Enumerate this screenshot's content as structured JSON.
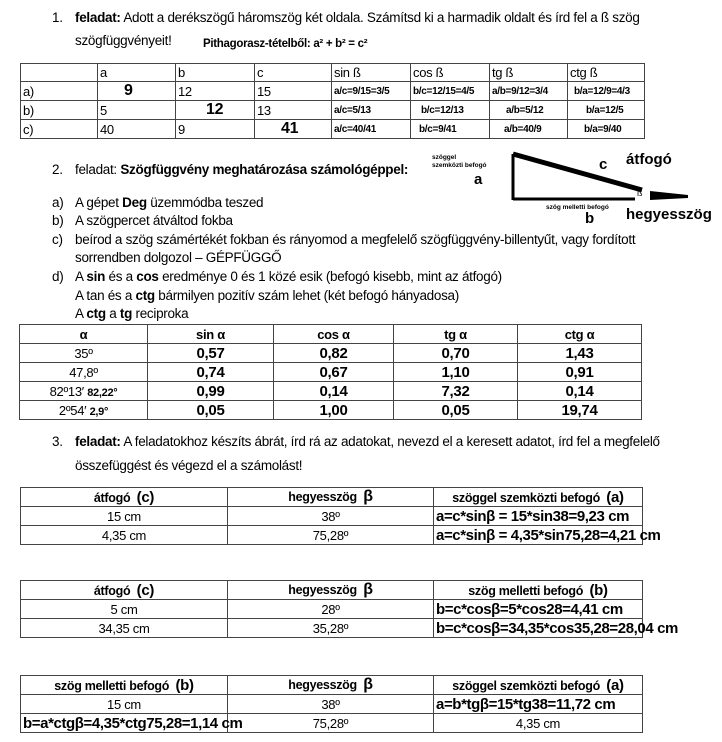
{
  "task1": {
    "number": "1.",
    "label": "feladat:",
    "text": "Adott a derékszögű háromszög két oldala. Számítsd ki a harmadik oldalt és írd fel a ß szög",
    "text2": "szögfüggvényeit!",
    "pythagoras": "Pithagorasz-tételből: a² + b²  = c²",
    "table": {
      "headers": [
        "",
        "a",
        "b",
        "c",
        "sin ß",
        "cos ß",
        "tg ß",
        "ctg ß"
      ],
      "rows": [
        [
          "a)",
          "9",
          "12",
          "15",
          "a/c=9/15=3/5",
          "b/c=12/15=4/5",
          "a/b=9/12=3/4",
          "b/a=12/9=4/3"
        ],
        [
          "b)",
          "5",
          "12",
          "13",
          "a/c=5/13",
          "b/c=12/13",
          "a/b=5/12",
          "b/a=12/5"
        ],
        [
          "c)",
          "40",
          "9",
          "41",
          "a/c=40/41",
          "b/c=9/41",
          "a/b=40/9",
          "b/a=9/40"
        ]
      ]
    }
  },
  "task2": {
    "number": "2.",
    "label": "feladat:",
    "title": "Szögfüggvény meghatározása számológéppel:",
    "items": [
      {
        "marker": "a)",
        "pre": "A gépet ",
        "bold": "Deg",
        "post": " üzemmódba teszed"
      },
      {
        "marker": "b)",
        "text": "A szögpercet átváltod fokba"
      },
      {
        "marker": "c)",
        "text": "beírod a szög számértékét fokban és rányomod a megfelelő szögfüggvény-billentyűt, vagy fordított",
        "text2": "sorrendben dolgozol – GÉPFÜGGŐ"
      },
      {
        "marker": "d)",
        "line1": [
          "A ",
          "sin",
          " és a ",
          "cos",
          " eredménye 0 és 1 közé esik (befogó kisebb, mint az átfogó)"
        ],
        "line2": [
          "A tan és a ",
          "ctg",
          " bármilyen pozitív szám lehet (két befogó hányadosa)"
        ],
        "line3": [
          "A ",
          "ctg",
          " a ",
          "tg",
          " reciproka"
        ]
      }
    ],
    "diagram": {
      "opposite_leg": "szöggel szemközti befogó",
      "a": "a",
      "c": "c",
      "hypotenuse": "átfogó",
      "beta": "ß",
      "adjacent_leg": "szög melletti befogó",
      "b": "b",
      "acute_angle": "hegyesszög"
    },
    "table": {
      "headers": [
        "α",
        "sin α",
        "cos α",
        "tg α",
        "ctg α"
      ],
      "rows": [
        {
          "angle": "35º",
          "extra": "",
          "values": [
            "0,57",
            "0,82",
            "0,70",
            "1,43"
          ]
        },
        {
          "angle": "47,8º",
          "extra": "",
          "values": [
            "0,74",
            "0,67",
            "1,10",
            "0,91"
          ]
        },
        {
          "angle": "82º13′",
          "extra": "82,22°",
          "values": [
            "0,99",
            "0,14",
            "7,32",
            "0,14"
          ]
        },
        {
          "angle": "2º54′",
          "extra": "2,9°",
          "values": [
            "0,05",
            "1,00",
            "0,05",
            "19,74"
          ]
        }
      ]
    }
  },
  "task3": {
    "number": "3.",
    "label": "feladat:",
    "text": "A feladatokhoz készíts ábrát, írd rá az adatokat, nevezd el a keresett adatot, írd fel a megfelelő",
    "text2": "összefüggést és végezd el a számolást!",
    "tables": [
      {
        "headers": [
          {
            "t": "átfogó",
            "s": "(c)"
          },
          {
            "t": "hegyesszög",
            "s": "β"
          },
          {
            "t": "szöggel szemközti befogó",
            "s": "(a)"
          }
        ],
        "rows": [
          [
            "15 cm",
            "38º",
            "a=c*sinβ = 15*sin38=9,23 cm"
          ],
          [
            "4,35 cm",
            "75,28º",
            "a=c*sinβ = 4,35*sin75,28=4,21 cm"
          ]
        ]
      },
      {
        "headers": [
          {
            "t": "átfogó",
            "s": "(c)"
          },
          {
            "t": "hegyesszög",
            "s": "β"
          },
          {
            "t": "szög melletti befogó",
            "s": "(b)"
          }
        ],
        "rows": [
          [
            "5 cm",
            "28º",
            "b=c*cosβ=5*cos28=4,41 cm"
          ],
          [
            "34,35 cm",
            "35,28º",
            "b=c*cosβ=34,35*cos35,28=28,04 cm"
          ]
        ]
      },
      {
        "headers": [
          {
            "t": "szög melletti befogó",
            "s": "(b)"
          },
          {
            "t": "hegyesszög",
            "s": "β"
          },
          {
            "t": "szöggel szemközti befogó",
            "s": "(a)"
          }
        ],
        "rows": [
          [
            "15 cm",
            "38º",
            "a=b*tgβ=15*tg38=11,72 cm"
          ],
          [
            "b=a*ctgβ=4,35*ctg75,28=1,14 cm",
            "75,28º",
            "4,35 cm"
          ]
        ]
      }
    ]
  }
}
